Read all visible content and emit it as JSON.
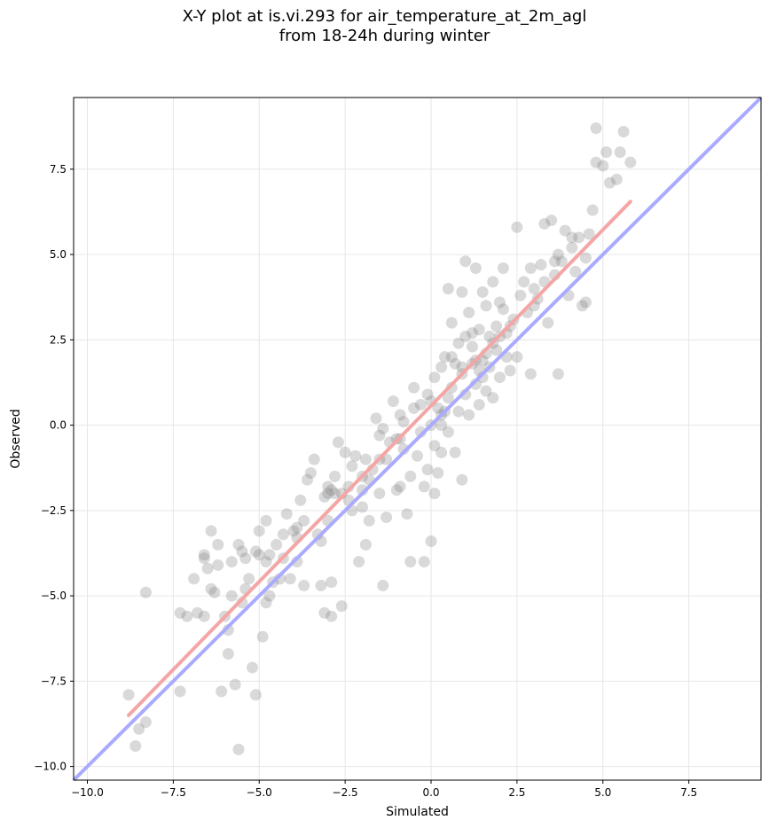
{
  "chart_data": {
    "type": "scatter",
    "title": "X-Y plot at is.vi.293 for air_temperature_at_2m_agl\nfrom 18-24h during winter",
    "xlabel": "Simulated",
    "ylabel": "Observed",
    "xlim": [
      -10.4,
      9.6
    ],
    "ylim": [
      -10.4,
      9.6
    ],
    "xticks": [
      -10.0,
      -7.5,
      -5.0,
      -2.5,
      0.0,
      2.5,
      5.0,
      7.5
    ],
    "yticks": [
      -10.0,
      -7.5,
      -5.0,
      -2.5,
      0.0,
      2.5,
      5.0,
      7.5
    ],
    "xtick_labels": [
      "−10.0",
      "−7.5",
      "−5.0",
      "−2.5",
      "0.0",
      "2.5",
      "5.0",
      "7.5"
    ],
    "ytick_labels": [
      "−10.0",
      "−7.5",
      "−5.0",
      "−2.5",
      "0.0",
      "2.5",
      "5.0",
      "7.5"
    ],
    "grid": true,
    "point_color": "#808080",
    "identity_line": {
      "color": "#aaaaff",
      "x": [
        -10.4,
        9.6
      ],
      "y": [
        -10.4,
        9.6
      ]
    },
    "fit_line": {
      "color": "#f4a6a6",
      "x": [
        -8.8,
        5.8
      ],
      "y": [
        -8.5,
        6.55
      ]
    },
    "points": [
      [
        -8.8,
        -7.9
      ],
      [
        -8.6,
        -9.4
      ],
      [
        -8.5,
        -8.9
      ],
      [
        -8.3,
        -8.7
      ],
      [
        -8.3,
        -4.9
      ],
      [
        -7.3,
        -7.8
      ],
      [
        -7.3,
        -5.5
      ],
      [
        -7.1,
        -5.6
      ],
      [
        -6.9,
        -4.5
      ],
      [
        -6.8,
        -5.5
      ],
      [
        -6.6,
        -3.8
      ],
      [
        -6.6,
        -5.6
      ],
      [
        -6.5,
        -4.2
      ],
      [
        -6.4,
        -3.1
      ],
      [
        -6.3,
        -4.9
      ],
      [
        -6.2,
        -3.5
      ],
      [
        -6.2,
        -4.1
      ],
      [
        -6.1,
        -7.8
      ],
      [
        -6.0,
        -5.6
      ],
      [
        -5.9,
        -6.7
      ],
      [
        -5.9,
        -6.0
      ],
      [
        -5.8,
        -4.0
      ],
      [
        -5.7,
        -7.6
      ],
      [
        -5.6,
        -9.5
      ],
      [
        -5.6,
        -3.5
      ],
      [
        -5.5,
        -3.7
      ],
      [
        -5.5,
        -5.2
      ],
      [
        -5.4,
        -4.8
      ],
      [
        -5.4,
        -3.9
      ],
      [
        -5.3,
        -4.5
      ],
      [
        -5.2,
        -7.1
      ],
      [
        -5.1,
        -7.9
      ],
      [
        -5.1,
        -3.7
      ],
      [
        -5.0,
        -3.1
      ],
      [
        -5.0,
        -3.8
      ],
      [
        -4.9,
        -6.2
      ],
      [
        -4.8,
        -4.0
      ],
      [
        -4.8,
        -2.8
      ],
      [
        -4.7,
        -5.0
      ],
      [
        -4.7,
        -3.8
      ],
      [
        -4.6,
        -4.6
      ],
      [
        -4.5,
        -3.5
      ],
      [
        -4.4,
        -4.5
      ],
      [
        -4.3,
        -3.9
      ],
      [
        -4.3,
        -3.2
      ],
      [
        -4.2,
        -2.6
      ],
      [
        -4.1,
        -4.5
      ],
      [
        -4.0,
        -3.1
      ],
      [
        -3.9,
        -3.0
      ],
      [
        -3.9,
        -4.0
      ],
      [
        -3.8,
        -2.2
      ],
      [
        -3.7,
        -2.8
      ],
      [
        -3.7,
        -4.7
      ],
      [
        -3.6,
        -1.6
      ],
      [
        -3.5,
        -1.4
      ],
      [
        -3.4,
        -1.0
      ],
      [
        -3.3,
        -3.2
      ],
      [
        -3.2,
        -3.4
      ],
      [
        -3.2,
        -4.7
      ],
      [
        -3.1,
        -2.1
      ],
      [
        -3.1,
        -5.5
      ],
      [
        -3.0,
        -1.8
      ],
      [
        -3.0,
        -2.8
      ],
      [
        -2.9,
        -1.9
      ],
      [
        -2.9,
        -4.6
      ],
      [
        -2.9,
        -5.6
      ],
      [
        -2.8,
        -1.5
      ],
      [
        -2.7,
        -0.5
      ],
      [
        -2.6,
        -2.0
      ],
      [
        -2.6,
        -5.3
      ],
      [
        -2.5,
        -0.8
      ],
      [
        -2.4,
        -1.8
      ],
      [
        -2.3,
        -2.5
      ],
      [
        -2.3,
        -1.2
      ],
      [
        -2.2,
        -0.9
      ],
      [
        -2.1,
        -4.0
      ],
      [
        -2.0,
        -2.4
      ],
      [
        -2.0,
        -1.9
      ],
      [
        -1.9,
        -1.0
      ],
      [
        -1.9,
        -3.5
      ],
      [
        -1.8,
        -1.6
      ],
      [
        -1.8,
        -2.8
      ],
      [
        -1.7,
        -1.3
      ],
      [
        -1.6,
        0.2
      ],
      [
        -1.5,
        -0.3
      ],
      [
        -1.5,
        -2.0
      ],
      [
        -1.4,
        -0.1
      ],
      [
        -1.4,
        -4.7
      ],
      [
        -1.3,
        -1.0
      ],
      [
        -1.3,
        -2.7
      ],
      [
        -1.2,
        -0.5
      ],
      [
        -1.1,
        0.7
      ],
      [
        -1.0,
        -0.4
      ],
      [
        -0.9,
        0.3
      ],
      [
        -0.9,
        -1.8
      ],
      [
        -0.8,
        -0.7
      ],
      [
        -0.8,
        0.1
      ],
      [
        -0.7,
        -2.6
      ],
      [
        -0.6,
        -1.5
      ],
      [
        -0.6,
        -4.0
      ],
      [
        -0.5,
        0.5
      ],
      [
        -0.5,
        1.1
      ],
      [
        -0.4,
        -0.9
      ],
      [
        -0.3,
        -0.2
      ],
      [
        -0.3,
        0.6
      ],
      [
        -0.2,
        -1.8
      ],
      [
        -0.2,
        -4.0
      ],
      [
        -0.1,
        0.9
      ],
      [
        -0.1,
        -1.3
      ],
      [
        0.0,
        0.7
      ],
      [
        0.0,
        -3.4
      ],
      [
        0.0,
        0.0
      ],
      [
        0.1,
        1.4
      ],
      [
        0.1,
        -0.6
      ],
      [
        0.1,
        -2.0
      ],
      [
        0.2,
        0.5
      ],
      [
        0.2,
        -1.4
      ],
      [
        0.3,
        1.7
      ],
      [
        0.3,
        0.0
      ],
      [
        0.3,
        -0.8
      ],
      [
        0.4,
        2.0
      ],
      [
        0.4,
        0.4
      ],
      [
        0.5,
        0.8
      ],
      [
        0.5,
        -0.2
      ],
      [
        0.5,
        4.0
      ],
      [
        0.6,
        1.1
      ],
      [
        0.6,
        3.0
      ],
      [
        0.7,
        -0.8
      ],
      [
        0.7,
        1.8
      ],
      [
        0.8,
        2.4
      ],
      [
        0.8,
        0.4
      ],
      [
        0.9,
        3.9
      ],
      [
        0.9,
        1.5
      ],
      [
        0.9,
        -1.6
      ],
      [
        1.0,
        4.8
      ],
      [
        1.0,
        2.6
      ],
      [
        1.0,
        0.9
      ],
      [
        1.1,
        3.3
      ],
      [
        1.1,
        0.3
      ],
      [
        1.2,
        1.8
      ],
      [
        1.2,
        2.3
      ],
      [
        1.3,
        1.2
      ],
      [
        1.3,
        4.6
      ],
      [
        1.3,
        1.9
      ],
      [
        1.4,
        2.8
      ],
      [
        1.4,
        0.6
      ],
      [
        1.5,
        3.9
      ],
      [
        1.5,
        1.4
      ],
      [
        1.6,
        2.1
      ],
      [
        1.6,
        3.5
      ],
      [
        1.6,
        1.0
      ],
      [
        1.7,
        2.6
      ],
      [
        1.7,
        1.7
      ],
      [
        1.8,
        4.2
      ],
      [
        1.8,
        0.8
      ],
      [
        1.9,
        2.9
      ],
      [
        1.9,
        2.2
      ],
      [
        2.0,
        3.6
      ],
      [
        2.0,
        1.4
      ],
      [
        2.1,
        3.4
      ],
      [
        2.1,
        4.6
      ],
      [
        2.2,
        2.0
      ],
      [
        2.3,
        1.6
      ],
      [
        2.4,
        3.1
      ],
      [
        2.5,
        5.8
      ],
      [
        2.5,
        2.0
      ],
      [
        2.6,
        3.8
      ],
      [
        2.7,
        4.2
      ],
      [
        2.8,
        3.3
      ],
      [
        2.9,
        4.6
      ],
      [
        2.9,
        1.5
      ],
      [
        3.0,
        4.0
      ],
      [
        3.1,
        3.7
      ],
      [
        3.2,
        4.7
      ],
      [
        3.3,
        5.9
      ],
      [
        3.3,
        4.2
      ],
      [
        3.4,
        3.0
      ],
      [
        3.5,
        6.0
      ],
      [
        3.6,
        4.4
      ],
      [
        3.7,
        5.0
      ],
      [
        3.7,
        1.5
      ],
      [
        3.8,
        4.8
      ],
      [
        3.9,
        5.7
      ],
      [
        4.0,
        3.8
      ],
      [
        4.1,
        5.2
      ],
      [
        4.2,
        4.5
      ],
      [
        4.3,
        5.5
      ],
      [
        4.4,
        3.5
      ],
      [
        4.5,
        4.9
      ],
      [
        4.5,
        3.6
      ],
      [
        4.6,
        5.6
      ],
      [
        4.7,
        6.3
      ],
      [
        4.8,
        8.7
      ],
      [
        4.8,
        7.7
      ],
      [
        5.0,
        7.6
      ],
      [
        5.1,
        8.0
      ],
      [
        5.2,
        7.1
      ],
      [
        5.4,
        7.2
      ],
      [
        5.5,
        8.0
      ],
      [
        5.6,
        8.6
      ],
      [
        5.8,
        7.7
      ],
      [
        -6.6,
        -3.9
      ],
      [
        -4.8,
        -5.2
      ],
      [
        -3.0,
        -2.0
      ],
      [
        -2.8,
        -2.0
      ],
      [
        -2.0,
        -1.5
      ],
      [
        -1.0,
        -1.9
      ],
      [
        0.6,
        2.0
      ],
      [
        1.2,
        2.7
      ],
      [
        1.4,
        1.6
      ],
      [
        1.8,
        2.4
      ],
      [
        2.2,
        2.7
      ],
      [
        3.0,
        3.5
      ],
      [
        3.6,
        4.8
      ],
      [
        4.1,
        5.5
      ],
      [
        -0.9,
        -0.4
      ],
      [
        0.3,
        0.3
      ],
      [
        1.5,
        1.9
      ],
      [
        2.0,
        2.6
      ],
      [
        2.3,
        2.9
      ],
      [
        0.9,
        1.7
      ],
      [
        -1.5,
        -1.0
      ],
      [
        -2.4,
        -2.2
      ],
      [
        -3.9,
        -3.3
      ],
      [
        -5.8,
        -5.0
      ],
      [
        -6.4,
        -4.8
      ]
    ]
  }
}
